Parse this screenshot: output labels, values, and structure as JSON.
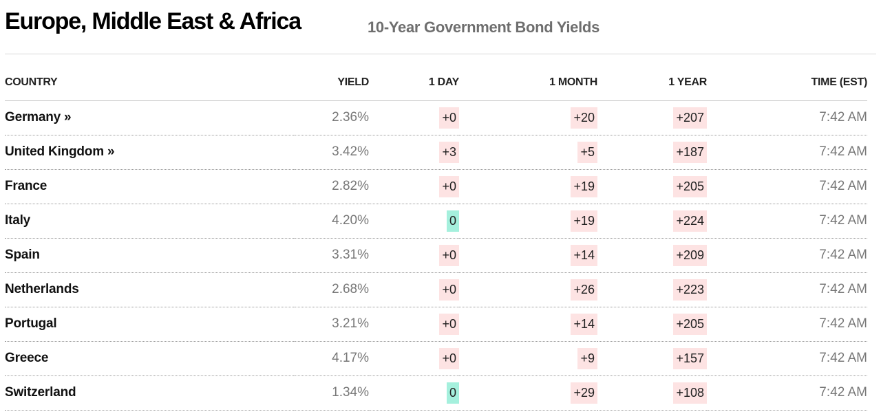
{
  "header": {
    "title": "Europe, Middle East & Africa",
    "subtitle": "10-Year Government Bond Yields"
  },
  "table": {
    "columns": {
      "country": "COUNTRY",
      "yield": "YIELD",
      "day": "1 DAY",
      "month": "1 MONTH",
      "year": "1 YEAR",
      "time": "TIME (EST)"
    },
    "rows": [
      {
        "country": "Germany »",
        "yield": "2.36%",
        "day": "+0",
        "month": "+20",
        "year": "+207",
        "time": "7:42 AM",
        "day_dir": "up",
        "month_dir": "up",
        "year_dir": "up",
        "link": true
      },
      {
        "country": "United Kingdom »",
        "yield": "3.42%",
        "day": "+3",
        "month": "+5",
        "year": "+187",
        "time": "7:42 AM",
        "day_dir": "up",
        "month_dir": "up",
        "year_dir": "up",
        "link": true
      },
      {
        "country": "France",
        "yield": "2.82%",
        "day": "+0",
        "month": "+19",
        "year": "+205",
        "time": "7:42 AM",
        "day_dir": "up",
        "month_dir": "up",
        "year_dir": "up",
        "link": false
      },
      {
        "country": "Italy",
        "yield": "4.20%",
        "day": "0",
        "month": "+19",
        "year": "+224",
        "time": "7:42 AM",
        "day_dir": "flat",
        "month_dir": "up",
        "year_dir": "up",
        "link": false
      },
      {
        "country": "Spain",
        "yield": "3.31%",
        "day": "+0",
        "month": "+14",
        "year": "+209",
        "time": "7:42 AM",
        "day_dir": "up",
        "month_dir": "up",
        "year_dir": "up",
        "link": false
      },
      {
        "country": "Netherlands",
        "yield": "2.68%",
        "day": "+0",
        "month": "+26",
        "year": "+223",
        "time": "7:42 AM",
        "day_dir": "up",
        "month_dir": "up",
        "year_dir": "up",
        "link": false
      },
      {
        "country": "Portugal",
        "yield": "3.21%",
        "day": "+0",
        "month": "+14",
        "year": "+205",
        "time": "7:42 AM",
        "day_dir": "up",
        "month_dir": "up",
        "year_dir": "up",
        "link": false
      },
      {
        "country": "Greece",
        "yield": "4.17%",
        "day": "+0",
        "month": "+9",
        "year": "+157",
        "time": "7:42 AM",
        "day_dir": "up",
        "month_dir": "up",
        "year_dir": "up",
        "link": false
      },
      {
        "country": "Switzerland",
        "yield": "1.34%",
        "day": "0",
        "month": "+29",
        "year": "+108",
        "time": "7:42 AM",
        "day_dir": "flat",
        "month_dir": "up",
        "year_dir": "up",
        "link": false
      }
    ]
  },
  "colors": {
    "positive_chip": "#fde3e3",
    "flat_chip": "#a5f0dd",
    "subtitle": "#6e6e6e",
    "muted_text": "#777777"
  }
}
